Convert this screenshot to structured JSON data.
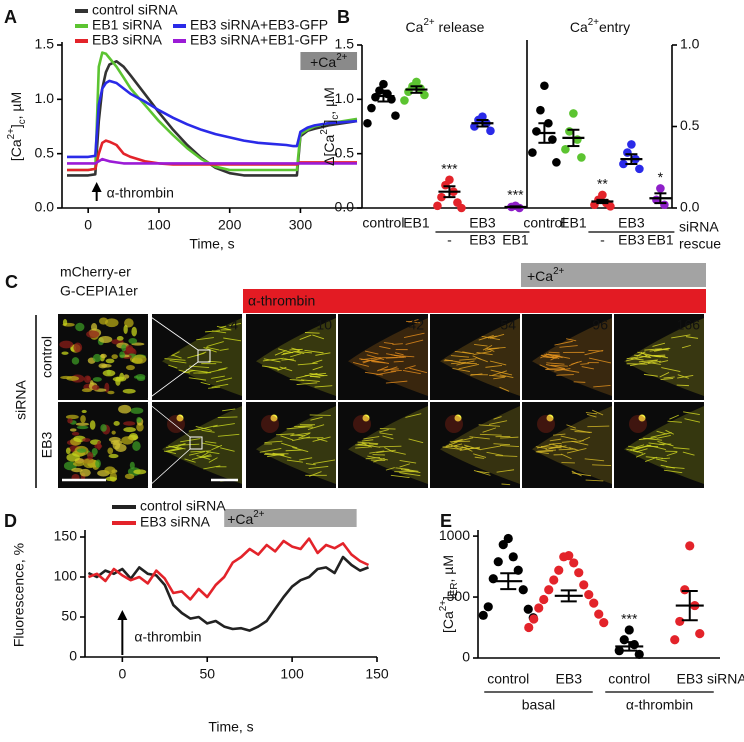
{
  "chart_data": [
    {
      "panel": "A",
      "type": "line",
      "xlabel": "Time, s",
      "ylabel": [
        "[Ca",
        "2+",
        "]",
        "c",
        ", µM"
      ],
      "x": [
        -30,
        -20,
        -10,
        0,
        10,
        15,
        20,
        25,
        30,
        40,
        50,
        60,
        80,
        100,
        120,
        140,
        160,
        180,
        200,
        220,
        240,
        260,
        280,
        290,
        295,
        300,
        310,
        320,
        340,
        360,
        380
      ],
      "xlim": [
        -37,
        387
      ],
      "xticks": [
        0,
        100,
        200,
        300
      ],
      "ylim": [
        0,
        1.5
      ],
      "yticks": [
        {
          "value": 0,
          "label": "0.0"
        },
        {
          "value": 0.5,
          "label": "0.5"
        },
        {
          "value": 1,
          "label": "1.0"
        },
        {
          "value": 1.5,
          "label": "1.5"
        }
      ],
      "legend": "top",
      "series": [
        {
          "name": "control siRNA",
          "color": "#333333",
          "values": [
            0.3,
            0.3,
            0.3,
            0.3,
            0.31,
            0.8,
            1.1,
            1.25,
            1.32,
            1.35,
            1.3,
            1.22,
            1.05,
            0.88,
            0.72,
            0.58,
            0.46,
            0.37,
            0.32,
            0.3,
            0.3,
            0.3,
            0.3,
            0.3,
            0.3,
            0.66,
            0.71,
            0.73,
            0.76,
            0.78,
            0.8
          ]
        },
        {
          "name": "EB1 siRNA",
          "color": "#5cc431",
          "values": [
            0.35,
            0.35,
            0.35,
            0.35,
            0.36,
            1.3,
            1.43,
            1.42,
            1.38,
            1.3,
            1.2,
            1.1,
            0.95,
            0.8,
            0.67,
            0.55,
            0.45,
            0.38,
            0.35,
            0.35,
            0.35,
            0.35,
            0.35,
            0.35,
            0.35,
            0.68,
            0.72,
            0.75,
            0.78,
            0.8,
            0.82
          ]
        },
        {
          "name": "EB3 siRNA",
          "color": "#e3232a",
          "values": [
            0.35,
            0.35,
            0.35,
            0.35,
            0.36,
            0.5,
            0.6,
            0.62,
            0.61,
            0.58,
            0.5,
            0.47,
            0.43,
            0.41,
            0.4,
            0.4,
            0.4,
            0.4,
            0.4,
            0.4,
            0.4,
            0.4,
            0.4,
            0.4,
            0.4,
            0.42,
            0.42,
            0.42,
            0.42,
            0.42,
            0.42
          ]
        },
        {
          "name": "EB3 siRNA+EB3-GFP",
          "color": "#2a2ae8",
          "values": [
            0.47,
            0.47,
            0.47,
            0.47,
            0.48,
            0.95,
            1.1,
            1.15,
            1.17,
            1.15,
            1.1,
            1.05,
            0.98,
            0.9,
            0.83,
            0.77,
            0.72,
            0.68,
            0.65,
            0.62,
            0.6,
            0.59,
            0.58,
            0.57,
            0.57,
            0.7,
            0.74,
            0.76,
            0.78,
            0.79,
            0.8
          ]
        },
        {
          "name": "EB3 siRNA+EB1-GFP",
          "color": "#9b1bd6",
          "values": [
            0.41,
            0.41,
            0.41,
            0.41,
            0.41,
            0.43,
            0.45,
            0.44,
            0.43,
            0.42,
            0.41,
            0.41,
            0.41,
            0.41,
            0.41,
            0.41,
            0.41,
            0.41,
            0.41,
            0.41,
            0.41,
            0.41,
            0.41,
            0.41,
            0.41,
            0.41,
            0.41,
            0.41,
            0.41,
            0.41,
            0.41
          ]
        }
      ],
      "arrow": {
        "text": "α-thrombin",
        "x": 12
      },
      "box": {
        "text": [
          "+Ca",
          "2+"
        ],
        "x": [
          300,
          380
        ]
      }
    },
    {
      "panel": "B",
      "type": "dot",
      "title": [
        "Ca",
        "2+",
        " release"
      ],
      "ylabel": [
        "Δ[Ca",
        "2+",
        "]",
        "c",
        ", µM"
      ],
      "ylim": [
        0,
        1.5
      ],
      "yticks": [
        {
          "value": 0,
          "label": "0.0"
        },
        {
          "value": 0.5,
          "label": "0.5"
        },
        {
          "value": 1,
          "label": "1.0"
        },
        {
          "value": 1.5,
          "label": "1.5"
        }
      ],
      "yaxis": "left",
      "cluster_label": "above",
      "clusters": [
        {
          "label": "control",
          "groups": [
            {
              "color": "#000000",
              "values": [
                1.14,
                1.08,
                1.05,
                1.02,
                1.0,
                0.92,
                0.85,
                0.78
              ],
              "mean": 1.03,
              "sem": 0.05
            }
          ]
        },
        {
          "label": "EB1",
          "groups": [
            {
              "color": "#5cc431",
              "values": [
                1.16,
                1.12,
                1.1,
                1.07,
                1.04,
                0.99
              ],
              "mean": 1.09,
              "sem": 0.03
            }
          ]
        },
        {
          "label": "EB3",
          "groups": [
            {
              "label": "-",
              "color": "#e3232a",
              "values": [
                0.26,
                0.21,
                0.15,
                0.1,
                0.05,
                0.02,
                0.0
              ],
              "mean": 0.15,
              "sem": 0.05,
              "stars": "***"
            },
            {
              "label": "EB3",
              "color": "#2a2ae8",
              "values": [
                0.84,
                0.81,
                0.78,
                0.75,
                0.71
              ],
              "mean": 0.78,
              "sem": 0.03
            },
            {
              "label": "EB1",
              "color": "#8e1fc9",
              "values": [
                0.02,
                0.01,
                0.0
              ],
              "mean": 0.01,
              "sem": 0.005,
              "stars": "***"
            }
          ]
        }
      ]
    },
    {
      "panel": "",
      "type": "dot",
      "title": [
        "Ca",
        "2+",
        "entry"
      ],
      "ylim": [
        0,
        1
      ],
      "yticks": [
        {
          "value": 0,
          "label": "0.0"
        },
        {
          "value": 0.5,
          "label": "0.5"
        },
        {
          "value": 1,
          "label": "1.0"
        }
      ],
      "yaxis": "right",
      "cluster_label": "above",
      "row_labels": [
        "siRNA",
        "rescue"
      ],
      "clusters": [
        {
          "label": "control",
          "groups": [
            {
              "color": "#000000",
              "values": [
                0.75,
                0.6,
                0.52,
                0.47,
                0.42,
                0.34,
                0.28
              ],
              "mean": 0.46,
              "sem": 0.06
            }
          ]
        },
        {
          "label": "EB1",
          "groups": [
            {
              "color": "#5cc431",
              "values": [
                0.58,
                0.47,
                0.42,
                0.36,
                0.31
              ],
              "mean": 0.43,
              "sem": 0.05
            }
          ]
        },
        {
          "label": "EB3",
          "groups": [
            {
              "label": "-",
              "color": "#e3232a",
              "values": [
                0.08,
                0.05,
                0.03,
                0.02,
                0.01
              ],
              "mean": 0.04,
              "sem": 0.01,
              "stars": "**"
            },
            {
              "label": "EB3",
              "color": "#2a2ae8",
              "values": [
                0.39,
                0.34,
                0.3,
                0.27,
                0.24
              ],
              "mean": 0.3,
              "sem": 0.03
            },
            {
              "label": "EB1",
              "color": "#8e1fc9",
              "values": [
                0.12,
                0.05,
                0.02
              ],
              "mean": 0.06,
              "sem": 0.03,
              "stars": "*"
            }
          ]
        }
      ]
    },
    {
      "panel": "C",
      "type": "image",
      "channels": [
        "mCherry-er",
        "G-CEPIA1er"
      ],
      "stimuli": [
        {
          "text": "α-thrombin"
        },
        {
          "text": [
            "+Ca",
            "2+"
          ]
        }
      ],
      "group_label": "siRNA",
      "rows": [
        "control",
        "EB3"
      ],
      "times": [
        -4,
        10,
        42,
        54,
        96,
        166
      ]
    },
    {
      "panel": "D",
      "type": "line",
      "xlabel": "Time, s",
      "ylabel": "Fluorescence, %",
      "x": [
        -20,
        -15,
        -10,
        -5,
        0,
        5,
        10,
        15,
        20,
        25,
        30,
        35,
        40,
        45,
        50,
        55,
        60,
        65,
        70,
        75,
        80,
        85,
        90,
        95,
        100,
        105,
        110,
        115,
        120,
        125,
        130,
        135,
        140,
        145
      ],
      "xlim": [
        -22,
        150
      ],
      "xticks": [
        0,
        50,
        100,
        150
      ],
      "ylim": [
        0,
        155
      ],
      "yticks": [
        0,
        50,
        100,
        150
      ],
      "legend": "top",
      "series": [
        {
          "name": "control siRNA",
          "color": "#222222",
          "values": [
            105,
            100,
            108,
            104,
            110,
            98,
            112,
            104,
            102,
            90,
            65,
            55,
            48,
            50,
            42,
            45,
            38,
            35,
            36,
            33,
            38,
            45,
            60,
            75,
            88,
            96,
            100,
            110,
            112,
            105,
            125,
            115,
            108,
            112
          ]
        },
        {
          "name": "EB3 siRNA",
          "color": "#e3232a",
          "values": [
            100,
            104,
            95,
            110,
            102,
            96,
            100,
            92,
            108,
            98,
            80,
            82,
            72,
            85,
            75,
            90,
            100,
            118,
            125,
            135,
            128,
            140,
            132,
            145,
            138,
            135,
            148,
            130,
            140,
            136,
            142,
            128,
            120,
            115
          ]
        }
      ],
      "arrow": {
        "text": "α-thrombin",
        "x": 0
      },
      "box": {
        "text": [
          "+Ca",
          "2+"
        ],
        "x": [
          60,
          138
        ]
      }
    },
    {
      "panel": "E",
      "type": "dot",
      "ylabel": [
        "[Ca",
        "2+",
        "]",
        "ER",
        ", µM"
      ],
      "ylim": [
        0,
        1050
      ],
      "yticks": [
        0,
        500,
        1000
      ],
      "yaxis": "left",
      "cluster_label": "below",
      "row_labels": [
        "siRNA"
      ],
      "clusters": [
        {
          "label": "basal",
          "groups": [
            {
              "label": "control",
              "color": "#000000",
              "values": [
                980,
                930,
                830,
                790,
                720,
                650,
                560,
                420,
                400,
                350,
                330
              ],
              "mean": 630,
              "sem": 65
            },
            {
              "label": "EB3",
              "color": "#e3232a",
              "values": [
                840,
                830,
                780,
                720,
                700,
                640,
                600,
                560,
                520,
                480,
                450,
                410,
                360,
                320,
                290,
                250
              ],
              "mean": 510,
              "sem": 45
            }
          ]
        },
        {
          "label": "α-thrombin",
          "groups": [
            {
              "label": "control",
              "color": "#000000",
              "values": [
                230,
                150,
                110,
                60,
                30
              ],
              "mean": 95,
              "sem": 35,
              "stars": "***"
            },
            {
              "label": "EB3",
              "color": "#e3232a",
              "values": [
                920,
                560,
                430,
                300,
                200,
                150
              ],
              "mean": 430,
              "sem": 120
            }
          ]
        }
      ]
    }
  ]
}
